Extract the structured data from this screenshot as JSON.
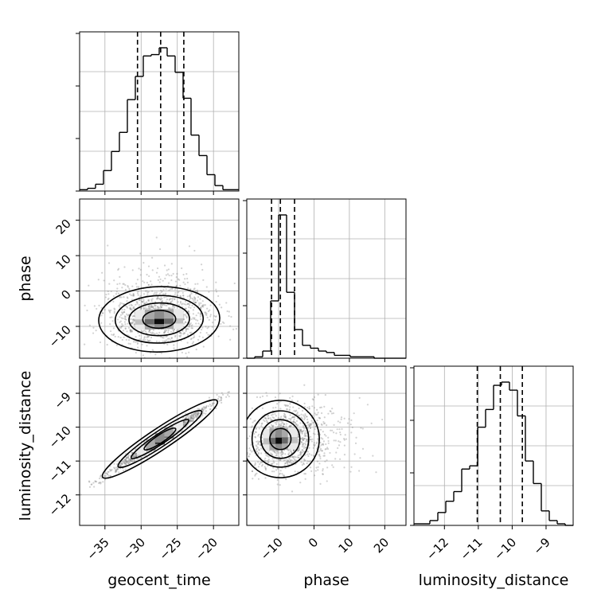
{
  "chart_data": {
    "type": "corner",
    "parameters": [
      "geocent_time",
      "phase",
      "luminosity_distance"
    ],
    "ranges": {
      "geocent_time": [
        -38.5,
        -16.5
      ],
      "phase": [
        -19,
        26
      ],
      "luminosity_distance": [
        -12.9,
        -8.2
      ]
    },
    "ticks": {
      "geocent_time": [
        -35,
        -30,
        -25,
        -20
      ],
      "phase": [
        -10,
        0,
        10,
        20
      ],
      "luminosity_distance": [
        -12,
        -11,
        -10,
        -9
      ]
    },
    "tick_labels": {
      "geocent_time": [
        "−35",
        "−30",
        "−25",
        "−20"
      ],
      "phase": [
        "−10",
        "0",
        "10",
        "20"
      ],
      "luminosity_distance": [
        "−12",
        "−11",
        "−10",
        "−9"
      ]
    },
    "quantiles": {
      "geocent_time": [
        -30.5,
        -27.3,
        -24.1
      ],
      "phase": [
        -12.0,
        -9.5,
        -5.5
      ],
      "luminosity_distance": [
        -11.03,
        -10.35,
        -9.7
      ]
    },
    "histograms": {
      "geocent_time": {
        "edges": [
          -38.5,
          -37.4,
          -36.3,
          -35.2,
          -34.1,
          -33.0,
          -31.9,
          -30.8,
          -29.7,
          -28.6,
          -27.5,
          -26.4,
          -25.3,
          -24.2,
          -23.1,
          -22.0,
          -20.9,
          -19.8,
          -18.7,
          -17.6,
          -16.5
        ],
        "counts": [
          1,
          2,
          5,
          15,
          29,
          43,
          67,
          84,
          99,
          100,
          105,
          99,
          87,
          68,
          41,
          26,
          12,
          4,
          1,
          1
        ]
      },
      "phase": {
        "edges": [
          -19,
          -16.75,
          -14.5,
          -12.25,
          -10,
          -7.75,
          -5.5,
          -3.25,
          -1,
          1.25,
          3.5,
          5.75,
          8,
          10.25,
          12.5,
          14.75,
          17,
          19.25,
          21.5,
          23.75,
          26
        ],
        "counts": [
          0,
          1,
          5,
          40,
          100,
          46,
          20,
          9,
          7,
          5,
          4,
          2,
          2,
          1,
          1,
          1,
          0,
          0,
          0,
          0
        ]
      },
      "luminosity_distance": {
        "edges": [
          -12.9,
          -12.665,
          -12.43,
          -12.195,
          -11.96,
          -11.725,
          -11.49,
          -11.255,
          -11.02,
          -10.785,
          -10.55,
          -10.315,
          -10.08,
          -9.845,
          -9.61,
          -9.375,
          -9.14,
          -8.905,
          -8.67,
          -8.435,
          -8.2
        ],
        "counts": [
          1,
          1,
          3,
          8,
          15,
          21,
          35,
          37,
          61,
          72,
          87,
          89,
          84,
          68,
          40,
          26,
          9,
          3,
          1,
          0
        ]
      }
    },
    "joint": {
      "phase_vs_geocent_time": {
        "x": "geocent_time",
        "y": "phase",
        "mean": [
          -27.5,
          -8.0
        ],
        "sd": [
          3.8,
          4.2
        ],
        "corr": 0.05
      },
      "luminosity_distance_vs_geocent_time": {
        "x": "geocent_time",
        "y": "luminosity_distance",
        "mean": [
          -27.4,
          -10.35
        ],
        "sd": [
          3.6,
          0.52
        ],
        "corr": 0.985
      },
      "luminosity_distance_vs_phase": {
        "x": "phase",
        "y": "luminosity_distance",
        "mean": [
          -9.5,
          -10.35
        ],
        "sd": [
          5.0,
          0.52
        ],
        "corr": 0.05
      }
    },
    "grid": true,
    "colors": {
      "line": "#000000",
      "points": "#7f7f7f",
      "grid": "#b0b0b0"
    }
  }
}
